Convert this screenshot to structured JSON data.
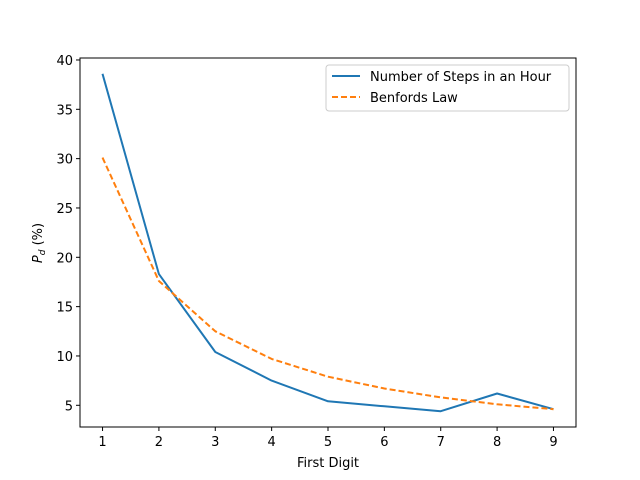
{
  "chart_data": {
    "type": "line",
    "title": "",
    "xlabel": "First Digit",
    "ylabel": "P_d (%)",
    "x": [
      1,
      2,
      3,
      4,
      5,
      6,
      7,
      8,
      9
    ],
    "xticks": [
      "1",
      "2",
      "3",
      "4",
      "5",
      "6",
      "7",
      "8",
      "9"
    ],
    "yticks": [
      "5",
      "10",
      "15",
      "20",
      "25",
      "30",
      "35",
      "40"
    ],
    "xlim": [
      0.6,
      9.4
    ],
    "ylim": [
      2.8,
      40.2
    ],
    "grid": false,
    "legend_position": "upper right",
    "series": [
      {
        "name": "Number of Steps in an Hour",
        "color": "#1f77b4",
        "linestyle": "solid",
        "values": [
          38.6,
          18.3,
          10.4,
          7.5,
          5.4,
          4.9,
          4.4,
          6.2,
          4.6
        ]
      },
      {
        "name": "Benfords Law",
        "color": "#ff7f0e",
        "linestyle": "dashed",
        "values": [
          30.1,
          17.6,
          12.5,
          9.7,
          7.9,
          6.7,
          5.8,
          5.1,
          4.6
        ]
      }
    ]
  }
}
